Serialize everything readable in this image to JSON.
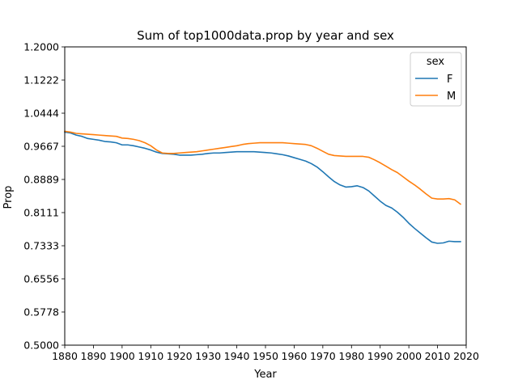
{
  "chart_data": {
    "type": "line",
    "title": "Sum of top1000data.prop by year and sex",
    "xlabel": "Year",
    "ylabel": "Prop",
    "xlim": [
      1880,
      2020
    ],
    "ylim": [
      0.5,
      1.2
    ],
    "xticks": [
      "1880",
      "1890",
      "1900",
      "1910",
      "1920",
      "1930",
      "1940",
      "1950",
      "1960",
      "1970",
      "1980",
      "1990",
      "2000",
      "2010",
      "2020"
    ],
    "yticks": [
      "0.5000",
      "0.5778",
      "0.6556",
      "0.7333",
      "0.8111",
      "0.8889",
      "0.9667",
      "1.0444",
      "1.1222",
      "1.2000"
    ],
    "grid": false,
    "legend": {
      "title": "sex",
      "placement": "top-right"
    },
    "colors": {
      "F": "#1f77b4",
      "M": "#ff7f0e"
    },
    "x": [
      1880,
      1882,
      1884,
      1886,
      1888,
      1890,
      1892,
      1894,
      1896,
      1898,
      1900,
      1902,
      1904,
      1906,
      1908,
      1910,
      1912,
      1914,
      1916,
      1918,
      1920,
      1922,
      1924,
      1926,
      1928,
      1930,
      1932,
      1934,
      1936,
      1938,
      1940,
      1942,
      1944,
      1946,
      1948,
      1950,
      1952,
      1954,
      1956,
      1958,
      1960,
      1962,
      1964,
      1966,
      1968,
      1970,
      1972,
      1974,
      1976,
      1978,
      1980,
      1982,
      1984,
      1986,
      1988,
      1990,
      1992,
      1994,
      1996,
      1998,
      2000,
      2002,
      2004,
      2006,
      2008,
      2010,
      2012,
      2014,
      2016,
      2018
    ],
    "series": [
      {
        "name": "F",
        "values": [
          1.0,
          0.998,
          0.993,
          0.99,
          0.985,
          0.983,
          0.981,
          0.978,
          0.977,
          0.975,
          0.97,
          0.97,
          0.968,
          0.965,
          0.962,
          0.958,
          0.953,
          0.95,
          0.949,
          0.948,
          0.946,
          0.946,
          0.946,
          0.947,
          0.948,
          0.95,
          0.951,
          0.951,
          0.952,
          0.953,
          0.954,
          0.954,
          0.954,
          0.954,
          0.953,
          0.952,
          0.951,
          0.949,
          0.947,
          0.944,
          0.94,
          0.936,
          0.932,
          0.926,
          0.918,
          0.907,
          0.895,
          0.884,
          0.876,
          0.871,
          0.872,
          0.874,
          0.87,
          0.862,
          0.85,
          0.838,
          0.828,
          0.822,
          0.812,
          0.8,
          0.786,
          0.774,
          0.763,
          0.752,
          0.742,
          0.739,
          0.74,
          0.744,
          0.743,
          0.743
        ]
      },
      {
        "name": "M",
        "values": [
          1.002,
          1.0,
          0.997,
          0.996,
          0.995,
          0.994,
          0.993,
          0.992,
          0.991,
          0.99,
          0.986,
          0.985,
          0.983,
          0.98,
          0.975,
          0.968,
          0.958,
          0.951,
          0.95,
          0.95,
          0.951,
          0.952,
          0.953,
          0.954,
          0.956,
          0.958,
          0.96,
          0.962,
          0.964,
          0.966,
          0.968,
          0.971,
          0.973,
          0.974,
          0.975,
          0.975,
          0.975,
          0.975,
          0.975,
          0.974,
          0.973,
          0.972,
          0.971,
          0.968,
          0.962,
          0.955,
          0.948,
          0.945,
          0.944,
          0.943,
          0.943,
          0.943,
          0.943,
          0.941,
          0.935,
          0.928,
          0.92,
          0.912,
          0.905,
          0.895,
          0.885,
          0.876,
          0.866,
          0.855,
          0.845,
          0.843,
          0.843,
          0.844,
          0.841,
          0.831
        ]
      }
    ]
  }
}
